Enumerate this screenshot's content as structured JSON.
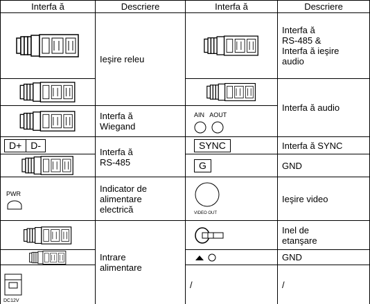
{
  "table": {
    "header": [
      "Interfa ă",
      "Descriere",
      "Interfa ă",
      "Descriere"
    ],
    "left_descriptions": [
      [
        "Ieşire releu"
      ],
      [
        "Interfa ă",
        "Wiegand"
      ],
      [
        "Interfa ă",
        "RS-485"
      ],
      [
        "Indicator de",
        "alimentare",
        "electrică"
      ],
      [
        "Intrare",
        "alimentare"
      ]
    ],
    "right_descriptions": [
      [
        "Interfa ă",
        "RS-485 &",
        "Interfa ă ieşire",
        "audio"
      ],
      [
        "Interfa ă audio"
      ],
      [
        "Interfa ă SYNC"
      ],
      [
        "GND"
      ],
      [
        "Ieşire video"
      ],
      [
        "Inel de",
        "etanşare"
      ],
      [
        "GND"
      ],
      [
        "/"
      ]
    ],
    "icon_labels": {
      "d_plus": "D+",
      "d_minus": "D-",
      "ain": "AIN",
      "aout": "AOUT",
      "sync": "SYNC",
      "g": "G",
      "pwr": "PWR",
      "video_out": "VIDEO OUT",
      "dc12v": "DC12V",
      "slash": "/"
    }
  }
}
